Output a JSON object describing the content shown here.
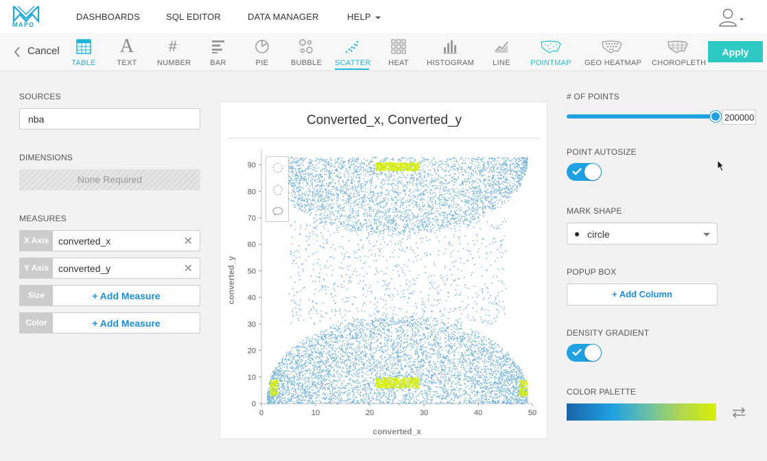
{
  "nav": {
    "logo_text": "MAPD",
    "links": [
      "DASHBOARDS",
      "SQL EDITOR",
      "DATA MANAGER",
      "HELP"
    ]
  },
  "toolbar": {
    "cancel_label": "Cancel",
    "chart_types": [
      "TABLE",
      "TEXT",
      "NUMBER",
      "BAR",
      "PIE",
      "BUBBLE",
      "SCATTER",
      "HEAT",
      "HISTOGRAM",
      "LINE",
      "POINTMAP",
      "GEO HEATMAP",
      "CHOROPLETH"
    ],
    "active_type": "SCATTER",
    "apply_label": "Apply",
    "colors": {
      "active": "#1fb5d8",
      "apply_bg": "#2dcac4"
    }
  },
  "left": {
    "sources_title": "SOURCES",
    "source_value": "nba",
    "dimensions_title": "DIMENSIONS",
    "dimensions_placeholder": "None Required",
    "measures_title": "MEASURES",
    "measures": [
      {
        "tag": "X Axis",
        "value": "converted_x"
      },
      {
        "tag": "Y Axis",
        "value": "converted_y"
      },
      {
        "tag": "Size",
        "add_label": "+ Add Measure"
      },
      {
        "tag": "Color",
        "add_label": "+ Add Measure"
      }
    ]
  },
  "chart_data": {
    "type": "scatter",
    "title": "Converted_x,  Converted_y",
    "xlabel": "converted_x",
    "ylabel": "converted_y",
    "xlim": [
      0,
      50
    ],
    "ylim": [
      0,
      93
    ],
    "x_ticks": [
      0,
      10,
      20,
      30,
      40,
      50
    ],
    "y_ticks": [
      0,
      10,
      20,
      30,
      40,
      50,
      60,
      70,
      80,
      90
    ],
    "grid": false,
    "colors": {
      "low": "#7fb6dc",
      "mid": "#6dc6b0",
      "high": "#d7ef05"
    }
  },
  "right": {
    "points_title": "# OF POINTS",
    "points_value": "200000",
    "points_fraction": 1.0,
    "autosize_title": "POINT AUTOSIZE",
    "autosize_on": true,
    "shape_title": "MARK SHAPE",
    "shape_value": "circle",
    "popup_title": "POPUP BOX",
    "popup_add_label": "+ Add Column",
    "gradient_title": "DENSITY GRADIENT",
    "gradient_on": true,
    "palette_title": "COLOR PALETTE",
    "palette_colors": [
      "#1b64a8",
      "#1ea0e3",
      "#6cc1a4",
      "#b4d94a",
      "#d7ef05"
    ]
  }
}
